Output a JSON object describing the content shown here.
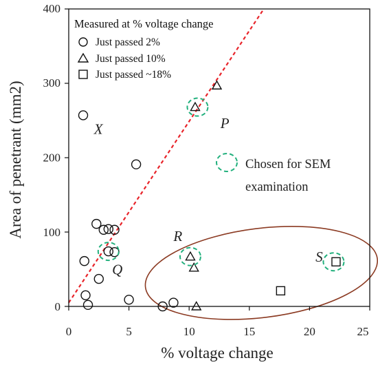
{
  "chart_data": {
    "type": "scatter",
    "xlabel": "% voltage change",
    "ylabel": "Area of penetrant (mm2)",
    "xlim": [
      0,
      25
    ],
    "ylim": [
      0,
      400
    ],
    "x_ticks": [
      "0",
      "5",
      "10",
      "15",
      "20",
      "25"
    ],
    "y_ticks": [
      "0",
      "100",
      "200",
      "300",
      "400"
    ],
    "grid": false,
    "legend": {
      "title": "Measured at % voltage change",
      "placement": "top-left",
      "entries": [
        {
          "symbol": "circle",
          "label": "Just passed 2%"
        },
        {
          "symbol": "triangle",
          "label": "Just passed 10%"
        },
        {
          "symbol": "square",
          "label": "Just passed ~18%"
        }
      ]
    },
    "series": [
      {
        "symbol": "circle",
        "points": [
          {
            "x": 1.2,
            "y": 257
          },
          {
            "x": 5.6,
            "y": 191
          },
          {
            "x": 2.3,
            "y": 111
          },
          {
            "x": 2.9,
            "y": 103
          },
          {
            "x": 3.3,
            "y": 104
          },
          {
            "x": 3.8,
            "y": 103
          },
          {
            "x": 1.3,
            "y": 61
          },
          {
            "x": 3.3,
            "y": 74
          },
          {
            "x": 3.8,
            "y": 73
          },
          {
            "x": 2.5,
            "y": 37
          },
          {
            "x": 1.4,
            "y": 15
          },
          {
            "x": 1.6,
            "y": 2
          },
          {
            "x": 5.0,
            "y": 9
          },
          {
            "x": 7.8,
            "y": 0
          },
          {
            "x": 8.7,
            "y": 5
          }
        ]
      },
      {
        "symbol": "triangle",
        "points": [
          {
            "x": 12.3,
            "y": 297
          },
          {
            "x": 10.5,
            "y": 268
          },
          {
            "x": 10.1,
            "y": 67
          },
          {
            "x": 10.4,
            "y": 52
          },
          {
            "x": 10.6,
            "y": 0
          }
        ]
      },
      {
        "symbol": "square",
        "points": [
          {
            "x": 17.6,
            "y": 21
          },
          {
            "x": 22.2,
            "y": 60
          }
        ]
      }
    ],
    "trend_line": {
      "color": "#e8242a",
      "from": [
        0,
        5
      ],
      "to": [
        16.2,
        400
      ]
    },
    "sem_marker": {
      "color": "#22b07d",
      "label_line1": "Chosen for SEM",
      "label_line2": "examination"
    },
    "sem_chosen": [
      {
        "x": 10.7,
        "y": 268
      },
      {
        "x": 3.3,
        "y": 74
      },
      {
        "x": 10.1,
        "y": 67
      },
      {
        "x": 22.0,
        "y": 60
      }
    ],
    "group_ellipse": {
      "color": "#8b3a22",
      "cx": 16.0,
      "cy": 45,
      "rx": 9.7,
      "ry": 60
    },
    "annotations": [
      {
        "text": "X",
        "x": 2.1,
        "y": 232
      },
      {
        "text": "P",
        "x": 12.6,
        "y": 240
      },
      {
        "text": "Q",
        "x": 3.6,
        "y": 43
      },
      {
        "text": "R",
        "x": 8.7,
        "y": 88
      },
      {
        "text": "S",
        "x": 20.5,
        "y": 60
      }
    ]
  }
}
